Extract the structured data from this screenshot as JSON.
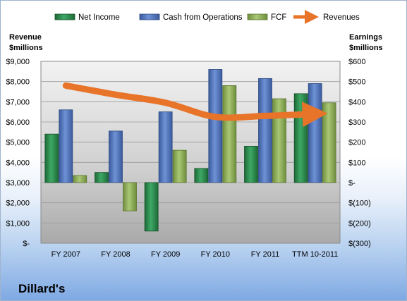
{
  "chart_data": {
    "type": "bar",
    "title": "Dillard's",
    "categories": [
      "FY 2007",
      "FY 2008",
      "FY 2009",
      "FY 2010",
      "FY 2011",
      "TTM 10-2011"
    ],
    "series": [
      {
        "name": "Net Income",
        "values": [
          240,
          50,
          -240,
          70,
          180,
          440
        ],
        "axis": "right",
        "color": "#2a8a4a"
      },
      {
        "name": "Cash from Operations",
        "values": [
          360,
          255,
          350,
          560,
          515,
          490
        ],
        "axis": "right",
        "color": "#4a6fb8"
      },
      {
        "name": "FCF",
        "values": [
          35,
          -140,
          160,
          480,
          415,
          395
        ],
        "axis": "right",
        "color": "#8aac52"
      },
      {
        "name": "Revenues",
        "values": [
          7800,
          7350,
          6950,
          6250,
          6300,
          6400
        ],
        "axis": "left",
        "color": "#e8742a",
        "kind": "line"
      }
    ],
    "left_axis": {
      "label_line1": "Revenue",
      "label_line2": "$millions",
      "ylim": [
        0,
        9000
      ],
      "ticks": [
        0,
        1000,
        2000,
        3000,
        4000,
        5000,
        6000,
        7000,
        8000,
        9000
      ],
      "tick_labels": [
        "$-",
        "$1,000",
        "$2,000",
        "$3,000",
        "$4,000",
        "$5,000",
        "$6,000",
        "$7,000",
        "$8,000",
        "$9,000"
      ]
    },
    "right_axis": {
      "label_line1": "Earnings",
      "label_line2": "$millions",
      "ylim": [
        -300,
        600
      ],
      "ticks": [
        -300,
        -200,
        -100,
        0,
        100,
        200,
        300,
        400,
        500,
        600
      ],
      "tick_labels": [
        "$(300)",
        "$(200)",
        "$(100)",
        "$-",
        "$100",
        "$200",
        "$300",
        "$400",
        "$500",
        "$600"
      ]
    },
    "legend": [
      "Net Income",
      "Cash from Operations",
      "FCF",
      "Revenues"
    ],
    "legend_position": "top",
    "grid": true
  }
}
